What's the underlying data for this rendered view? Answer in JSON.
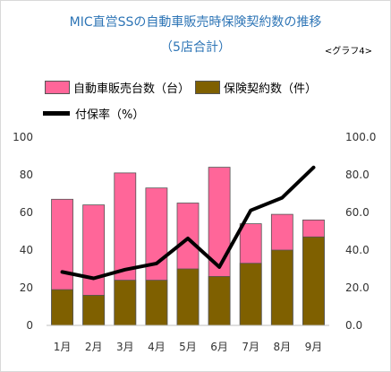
{
  "title_line1": "MIC直営SSの自動車販売時保険契約数の推移",
  "title_line2": "（5店合計）",
  "graph_label": "<グラフ4>",
  "legend": {
    "sales": "自動車販売台数（台）",
    "contracts": "保険契約数（件）",
    "rate": "付保率（%）"
  },
  "colors": {
    "sales": "#ff6699",
    "contracts": "#7f6000",
    "rate": "#000000"
  },
  "chart_data": {
    "type": "bar",
    "stacked": true,
    "categories": [
      "1月",
      "2月",
      "3月",
      "4月",
      "5月",
      "6月",
      "7月",
      "8月",
      "9月"
    ],
    "series": [
      {
        "name": "自動車販売台数（台）",
        "type": "bar",
        "axis": "left",
        "values": [
          67,
          64,
          81,
          73,
          65,
          84,
          54,
          59,
          56
        ]
      },
      {
        "name": "保険契約数（件）",
        "type": "bar",
        "axis": "left",
        "values": [
          19,
          16,
          24,
          24,
          30,
          26,
          33,
          40,
          47
        ]
      },
      {
        "name": "付保率（%）",
        "type": "line",
        "axis": "right",
        "values": [
          28.4,
          25.0,
          29.6,
          32.9,
          46.2,
          31.0,
          61.1,
          67.8,
          83.9
        ]
      }
    ],
    "y_left": {
      "range": [
        0,
        100
      ],
      "ticks": [
        "0",
        "20",
        "40",
        "60",
        "80",
        "100"
      ]
    },
    "y_right": {
      "range": [
        0,
        100
      ],
      "ticks": [
        "0.0",
        "20.0",
        "40.0",
        "60.0",
        "80.0",
        "100.0"
      ]
    },
    "legend_position": "top",
    "grid": false
  }
}
